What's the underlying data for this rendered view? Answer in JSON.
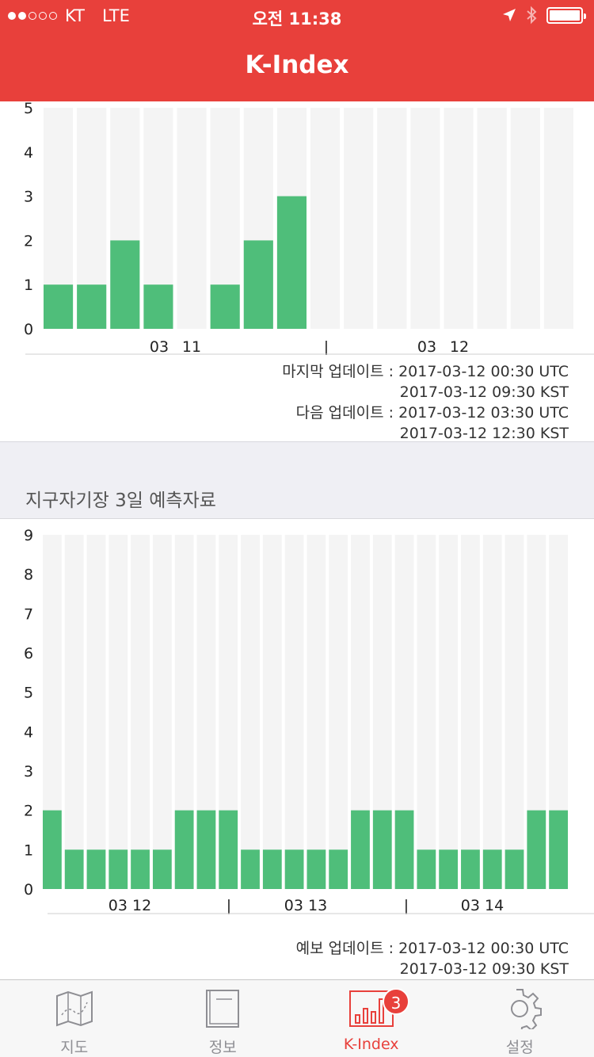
{
  "status_bar": {
    "carrier": "KT",
    "network": "LTE",
    "time": "오전 11:38"
  },
  "header": {
    "title": "K-Index"
  },
  "kindex_chart": {
    "type": "bar",
    "y_ticks": [
      "5",
      "4",
      "3",
      "2",
      "1",
      "0"
    ],
    "ylim": [
      0,
      5
    ],
    "values": [
      1,
      1,
      2,
      1,
      0,
      1,
      2,
      3,
      0,
      0,
      0,
      0,
      0,
      0,
      0,
      0
    ],
    "x_labels": [
      "03",
      "11",
      "|",
      "03",
      "12"
    ],
    "colors": {
      "bar": "#4fbe7a",
      "background": "#f4f4f4"
    }
  },
  "last_update": {
    "label": "마지막 업데이트 :",
    "utc": "2017-03-12 00:30 UTC",
    "kst": "2017-03-12 09:30 KST"
  },
  "next_update": {
    "label": "다음 업데이트 :",
    "utc": "2017-03-12 03:30 UTC",
    "kst": "2017-03-12 12:30 KST"
  },
  "section": {
    "title": "지구자기장 3일 예측자료"
  },
  "forecast_chart": {
    "type": "bar",
    "y_ticks": [
      "9",
      "8",
      "7",
      "6",
      "5",
      "4",
      "3",
      "2",
      "1",
      "0"
    ],
    "ylim": [
      0,
      9
    ],
    "values": [
      2,
      1,
      1,
      1,
      1,
      1,
      2,
      2,
      2,
      1,
      1,
      1,
      1,
      1,
      2,
      2,
      2,
      1,
      1,
      1,
      1,
      1,
      2,
      2
    ],
    "x_labels": [
      "03 12",
      "|",
      "03 13",
      "|",
      "03 14"
    ],
    "colors": {
      "bar": "#4fbe7a",
      "background": "#f4f4f4"
    }
  },
  "forecast_update": {
    "label": "예보 업데이트 :",
    "utc": "2017-03-12 00:30 UTC",
    "kst": "2017-03-12 09:30 KST"
  },
  "tabs": [
    {
      "label": "지도",
      "icon": "map-icon"
    },
    {
      "label": "정보",
      "icon": "book-icon"
    },
    {
      "label": "K-Index",
      "icon": "bar-chart-icon",
      "badge": "3",
      "active": true
    },
    {
      "label": "설정",
      "icon": "gear-icon"
    }
  ],
  "colors": {
    "accent": "#e8403b"
  }
}
